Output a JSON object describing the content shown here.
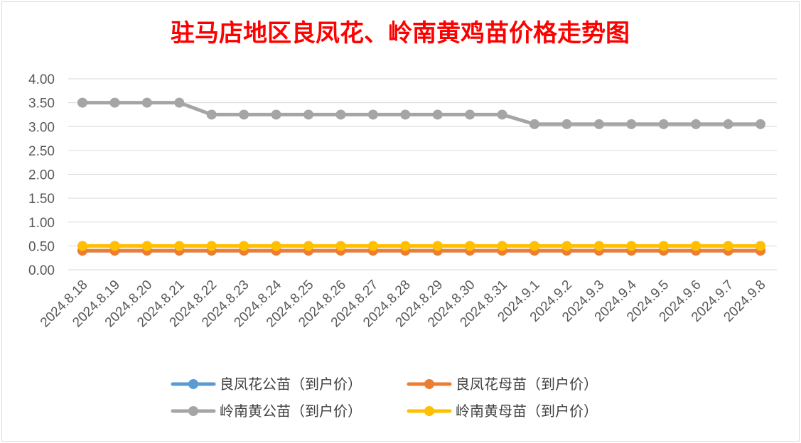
{
  "chart_data": {
    "type": "line",
    "title": "驻马店地区良凤花、岭南黄鸡苗价格走势图",
    "title_color": "#ff0000",
    "xlabel": "",
    "ylabel": "",
    "ylim": [
      0,
      4
    ],
    "yticks": [
      "0.00",
      "0.50",
      "1.00",
      "1.50",
      "2.00",
      "2.50",
      "3.00",
      "3.50",
      "4.00"
    ],
    "grid": true,
    "legend_position": "bottom",
    "categories": [
      "2024.8.18",
      "2024.8.19",
      "2024.8.20",
      "2024.8.21",
      "2024.8.22",
      "2024.8.23",
      "2024.8.24",
      "2024.8.25",
      "2024.8.26",
      "2024.8.27",
      "2024.8.28",
      "2024.8.29",
      "2024.8.30",
      "2024.8.31",
      "2024.9.1",
      "2024.9.2",
      "2024.9.3",
      "2024.9.4",
      "2024.9.5",
      "2024.9.6",
      "2024.9.7",
      "2024.9.8"
    ],
    "series": [
      {
        "name": "良凤花公苗（到户价）",
        "color": "#5b9bd5",
        "values": [
          0.4,
          0.4,
          0.4,
          0.4,
          0.4,
          0.4,
          0.4,
          0.4,
          0.4,
          0.4,
          0.4,
          0.4,
          0.4,
          0.4,
          0.4,
          0.4,
          0.4,
          0.4,
          0.4,
          0.4,
          0.4,
          0.4
        ]
      },
      {
        "name": "良凤花母苗（到户价）",
        "color": "#ed7d31",
        "values": [
          0.4,
          0.4,
          0.4,
          0.4,
          0.4,
          0.4,
          0.4,
          0.4,
          0.4,
          0.4,
          0.4,
          0.4,
          0.4,
          0.4,
          0.4,
          0.4,
          0.4,
          0.4,
          0.4,
          0.4,
          0.4,
          0.4
        ]
      },
      {
        "name": "岭南黄公苗（到户价）",
        "color": "#a5a5a5",
        "values": [
          3.5,
          3.5,
          3.5,
          3.5,
          3.25,
          3.25,
          3.25,
          3.25,
          3.25,
          3.25,
          3.25,
          3.25,
          3.25,
          3.25,
          3.05,
          3.05,
          3.05,
          3.05,
          3.05,
          3.05,
          3.05,
          3.05
        ]
      },
      {
        "name": "岭南黄母苗（到户价）",
        "color": "#ffc000",
        "values": [
          0.5,
          0.5,
          0.5,
          0.5,
          0.5,
          0.5,
          0.5,
          0.5,
          0.5,
          0.5,
          0.5,
          0.5,
          0.5,
          0.5,
          0.5,
          0.5,
          0.5,
          0.5,
          0.5,
          0.5,
          0.5,
          0.5
        ]
      }
    ]
  }
}
